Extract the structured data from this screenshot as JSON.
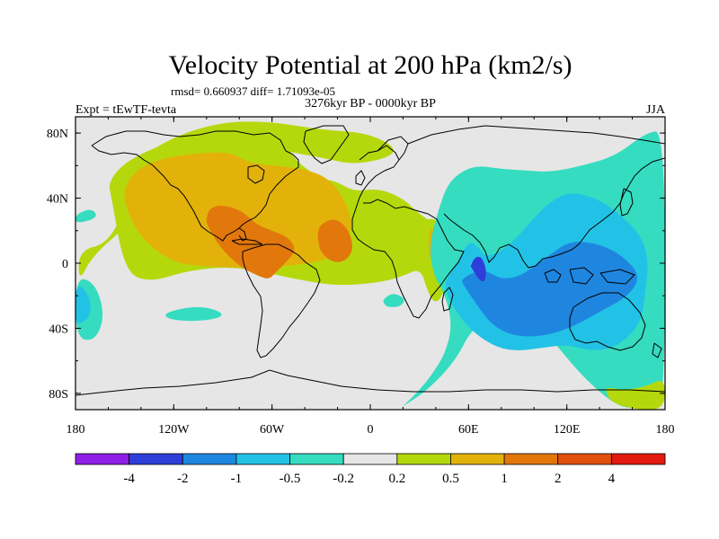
{
  "chart_data": {
    "type": "heatmap",
    "title": "Velocity Potential at 200 hPa (km2/s)",
    "subtitle_stats": "rmsd= 0.660937 diff= 1.71093e-05",
    "subtitle_period": "3276kyr BP - 0000kyr BP",
    "experiment": "Expt = tEwTF-tevta",
    "season": "JJA",
    "x_range": [
      -180,
      180
    ],
    "y_range": [
      -90,
      90
    ],
    "x_ticks": [
      {
        "value": -180,
        "label": "180"
      },
      {
        "value": -120,
        "label": "120W"
      },
      {
        "value": -60,
        "label": "60W"
      },
      {
        "value": 0,
        "label": "0"
      },
      {
        "value": 60,
        "label": "60E"
      },
      {
        "value": 120,
        "label": "120E"
      },
      {
        "value": 180,
        "label": "180"
      }
    ],
    "y_ticks": [
      {
        "value": 80,
        "label": "80N"
      },
      {
        "value": 40,
        "label": "40N"
      },
      {
        "value": 0,
        "label": "0"
      },
      {
        "value": -40,
        "label": "40S"
      },
      {
        "value": -80,
        "label": "80S"
      }
    ],
    "colorbar": {
      "levels": [
        "-4",
        "-2",
        "-1",
        "-0.5",
        "-0.2",
        "0.2",
        "0.5",
        "1",
        "2",
        "4"
      ],
      "colors": [
        "#8d1fe6",
        "#2e3fd9",
        "#1f86e0",
        "#22c2e6",
        "#35dcc0",
        "#e6e6e6",
        "#b5d80c",
        "#e2b20a",
        "#e2770c",
        "#e2500e",
        "#e21a10"
      ]
    },
    "regions": [
      {
        "name": "west-pacific-pos",
        "level": 6,
        "lon": [
          -178,
          -160,
          -148,
          -135,
          -110,
          -100,
          -88,
          -100,
          -125,
          -150,
          -170,
          -178
        ],
        "lat": [
          8,
          12,
          38,
          60,
          74,
          82,
          85,
          62,
          42,
          22,
          4,
          -12
        ]
      },
      {
        "name": "north-atlantic-pos",
        "level": 6,
        "lon": [
          -145,
          -120,
          -90,
          -60,
          -30,
          0,
          20,
          -8,
          -30,
          -70,
          -110,
          -135
        ],
        "lat": [
          62,
          78,
          87,
          87,
          82,
          80,
          68,
          60,
          65,
          72,
          72,
          68
        ]
      },
      {
        "name": "america-atlantic-pos",
        "level": 6,
        "lon": [
          -158,
          -150,
          -135,
          -110,
          -80,
          -45,
          -20,
          5,
          20,
          30,
          35,
          42,
          45,
          50,
          48,
          40,
          30,
          20,
          5,
          -10,
          -20,
          -30,
          -45,
          -55,
          -60,
          -75,
          -90,
          -110,
          -130,
          -150,
          -160
        ],
        "lat": [
          40,
          -5,
          -12,
          -4,
          -2,
          -10,
          -14,
          -12,
          -8,
          -3,
          -15,
          -20,
          -5,
          6,
          16,
          24,
          30,
          40,
          46,
          44,
          50,
          52,
          62,
          78,
          84,
          86,
          82,
          78,
          72,
          62,
          50
        ]
      },
      {
        "name": "pacific-pos-mid",
        "level": 7,
        "lon": [
          -150,
          -140,
          -120,
          -100,
          -85,
          -75,
          -60,
          -40,
          -25,
          -15,
          -10,
          -20,
          -35,
          -55,
          -80,
          -100,
          -120,
          -140,
          -150
        ],
        "lat": [
          48,
          60,
          66,
          68,
          68,
          62,
          60,
          58,
          52,
          38,
          22,
          5,
          0,
          -2,
          -3,
          -2,
          0,
          15,
          35
        ]
      },
      {
        "name": "gulf-core",
        "level": 8,
        "lon": [
          -100,
          -98,
          -90,
          -78,
          -70,
          -60,
          -50,
          -45,
          -52,
          -58,
          -62,
          -68,
          -80,
          -92,
          -100
        ],
        "lat": [
          28,
          34,
          36,
          32,
          24,
          20,
          16,
          8,
          0,
          -6,
          -10,
          -8,
          -2,
          10,
          24
        ]
      },
      {
        "name": "atlantic-core",
        "level": 8,
        "lon": [
          -32,
          -30,
          -22,
          -14,
          -10,
          -14,
          -22,
          -30,
          -32
        ],
        "lat": [
          20,
          24,
          28,
          22,
          10,
          2,
          0,
          6,
          14
        ]
      },
      {
        "name": "africa-pos",
        "level": 6,
        "lon": [
          30,
          35,
          42,
          45,
          50,
          48,
          40,
          32,
          30
        ],
        "lat": [
          20,
          28,
          26,
          15,
          3,
          -10,
          -28,
          -10,
          8
        ]
      },
      {
        "name": "africa-core",
        "level": 7,
        "lon": [
          36,
          40,
          44,
          44,
          39,
          35,
          36
        ],
        "lat": [
          20,
          22,
          15,
          6,
          -2,
          8,
          16
        ]
      },
      {
        "name": "neg-1-region",
        "level": 4,
        "lon": [
          20,
          35,
          52,
          62,
          80,
          98,
          115,
          130,
          148,
          160,
          175,
          180,
          180,
          168,
          150,
          130,
          110,
          95,
          80,
          65,
          55,
          47,
          42,
          36,
          38,
          46,
          50,
          46,
          38,
          30,
          20
        ],
        "lat": [
          -88,
          -78,
          -60,
          -40,
          -30,
          -32,
          -52,
          -70,
          -86,
          -90,
          -85,
          -75,
          82,
          80,
          66,
          60,
          56,
          57,
          58,
          60,
          56,
          48,
          34,
          12,
          -6,
          -20,
          -38,
          -55,
          -68,
          -78,
          -88
        ]
      },
      {
        "name": "neg-2-region",
        "level": 3,
        "lon": [
          46,
          55,
          66,
          78,
          90,
          105,
          120,
          135,
          150,
          165,
          168,
          170,
          165,
          150,
          138,
          122,
          110,
          100,
          88,
          78,
          70,
          66,
          60,
          52,
          46
        ],
        "lat": [
          -18,
          -34,
          -45,
          -52,
          -54,
          -52,
          -50,
          -54,
          -52,
          -38,
          -18,
          2,
          18,
          32,
          40,
          44,
          38,
          28,
          14,
          6,
          4,
          10,
          14,
          -2,
          -10
        ]
      },
      {
        "name": "neg-3-region",
        "level": 2,
        "lon": [
          56,
          64,
          74,
          88,
          105,
          122,
          140,
          158,
          165,
          155,
          140,
          122,
          108,
          92,
          80,
          70,
          62,
          56
        ],
        "lat": [
          -12,
          -24,
          -38,
          -45,
          -45,
          -40,
          -30,
          -20,
          -8,
          4,
          12,
          14,
          4,
          -8,
          -10,
          -4,
          -6,
          -10
        ]
      },
      {
        "name": "neg-4-region",
        "level": 1,
        "lon": [
          62,
          66,
          70,
          71,
          68,
          64,
          61,
          62
        ],
        "lat": [
          -3,
          -10,
          -12,
          -4,
          4,
          4,
          -2,
          -3
        ]
      },
      {
        "name": "west-pac-neg",
        "level": 4,
        "lon": [
          -180,
          -168,
          -162,
          -168,
          -180
        ],
        "lat": [
          -8,
          -12,
          -32,
          -48,
          -46
        ]
      },
      {
        "name": "west-pac-neg-2",
        "level": 3,
        "lon": [
          -180,
          -172,
          -170,
          -178,
          -180
        ],
        "lat": [
          -12,
          -18,
          -32,
          -38,
          -34
        ]
      },
      {
        "name": "far-north-neg",
        "level": 4,
        "lon": [
          -180,
          -170,
          -166,
          -180
        ],
        "lat": [
          30,
          34,
          28,
          24
        ]
      },
      {
        "name": "mid-south-neg",
        "level": 4,
        "lon": [
          -125,
          -105,
          -90,
          -92,
          -110,
          -125
        ],
        "lat": [
          -30,
          -26,
          -30,
          -34,
          -36,
          -34
        ]
      },
      {
        "name": "south-atl-neg",
        "level": 4,
        "lon": [
          8,
          14,
          22,
          18,
          10,
          8
        ],
        "lat": [
          -22,
          -18,
          -22,
          -27,
          -27,
          -24
        ]
      },
      {
        "name": "pacific-pos-pocket",
        "level": 6,
        "lon": [
          144,
          154,
          168,
          180,
          180,
          162,
          148,
          144
        ],
        "lat": [
          -76,
          -78,
          -76,
          -70,
          -90,
          -90,
          -86,
          -80
        ]
      }
    ]
  }
}
